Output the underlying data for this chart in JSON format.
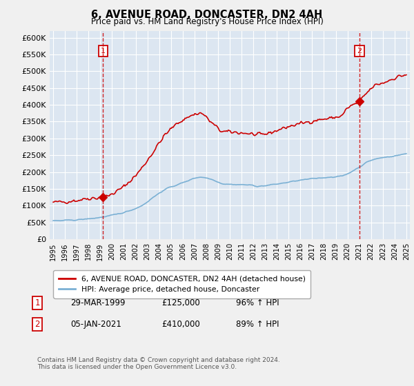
{
  "title": "6, AVENUE ROAD, DONCASTER, DN2 4AH",
  "subtitle": "Price paid vs. HM Land Registry's House Price Index (HPI)",
  "red_line_label": "6, AVENUE ROAD, DONCASTER, DN2 4AH (detached house)",
  "blue_line_label": "HPI: Average price, detached house, Doncaster",
  "annotation1_date": "29-MAR-1999",
  "annotation1_price": "£125,000",
  "annotation1_hpi": "96% ↑ HPI",
  "annotation1_year": 1999.23,
  "annotation1_value": 125000,
  "annotation2_date": "05-JAN-2021",
  "annotation2_price": "£410,000",
  "annotation2_hpi": "89% ↑ HPI",
  "annotation2_year": 2021.02,
  "annotation2_value": 410000,
  "footer": "Contains HM Land Registry data © Crown copyright and database right 2024.\nThis data is licensed under the Open Government Licence v3.0.",
  "ylim": [
    0,
    620000
  ],
  "yticks": [
    0,
    50000,
    100000,
    150000,
    200000,
    250000,
    300000,
    350000,
    400000,
    450000,
    500000,
    550000,
    600000
  ],
  "background_color": "#dce6f1",
  "red_color": "#cc0000",
  "blue_color": "#7ab0d4",
  "grid_color": "#ffffff",
  "fig_bg": "#f0f0f0"
}
